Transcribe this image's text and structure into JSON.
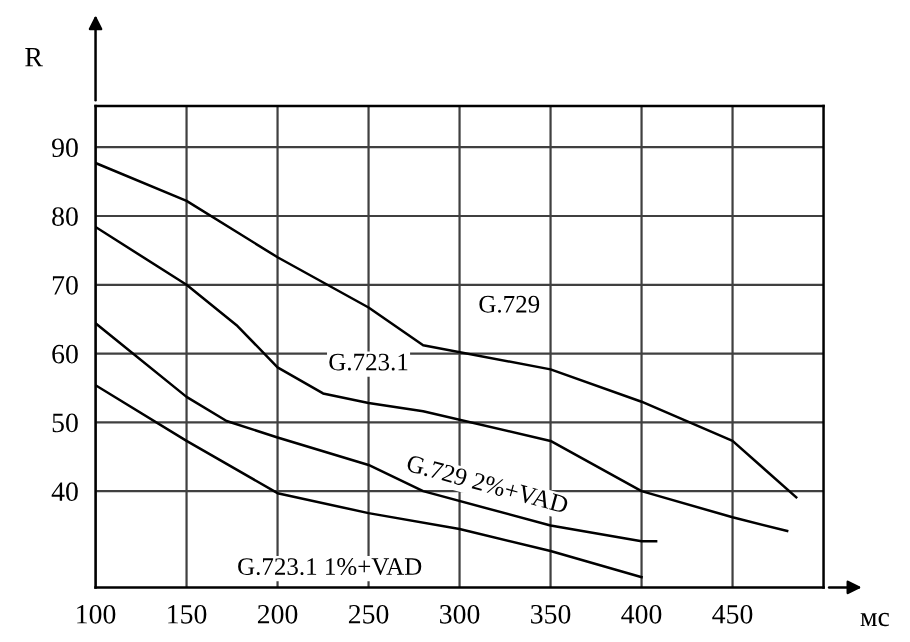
{
  "chart_data": {
    "type": "line",
    "xlabel": "мс",
    "ylabel": "R",
    "xlim": [
      100,
      500
    ],
    "ylim": [
      26,
      96
    ],
    "xticks": [
      100,
      150,
      200,
      250,
      300,
      350,
      400,
      450
    ],
    "yticks": [
      40,
      50,
      60,
      70,
      80,
      90
    ],
    "grid": true,
    "marker": "none",
    "line_style": "solid",
    "series": [
      {
        "name": "G.729",
        "color": "#000000",
        "x": [
          100,
          150,
          200,
          250,
          280,
          350,
          400,
          450,
          485
        ],
        "values": [
          87.7,
          82.2,
          74,
          66.7,
          61.2,
          57.7,
          53,
          47.3,
          39.1
        ]
      },
      {
        "name": "G.723.1",
        "color": "#000000",
        "x": [
          100,
          150,
          178,
          200,
          225,
          250,
          280,
          350,
          400,
          450,
          480
        ],
        "values": [
          78.4,
          70,
          64,
          58,
          54.2,
          52.8,
          51.6,
          47.3,
          40,
          36.2,
          34.2
        ]
      },
      {
        "name": "G.729 2%+VAD",
        "color": "#000000",
        "x": [
          100,
          150,
          172,
          200,
          250,
          280,
          350,
          400,
          408
        ],
        "values": [
          64.4,
          53.7,
          50.2,
          47.8,
          43.8,
          40,
          35,
          32.7,
          32.7
        ]
      },
      {
        "name": "G.723.1 1%+VAD",
        "color": "#000000",
        "x": [
          100,
          150,
          200,
          250,
          300,
          350,
          400
        ],
        "values": [
          55.4,
          47.3,
          39.7,
          36.8,
          34.5,
          31.3,
          27.5
        ]
      }
    ]
  }
}
